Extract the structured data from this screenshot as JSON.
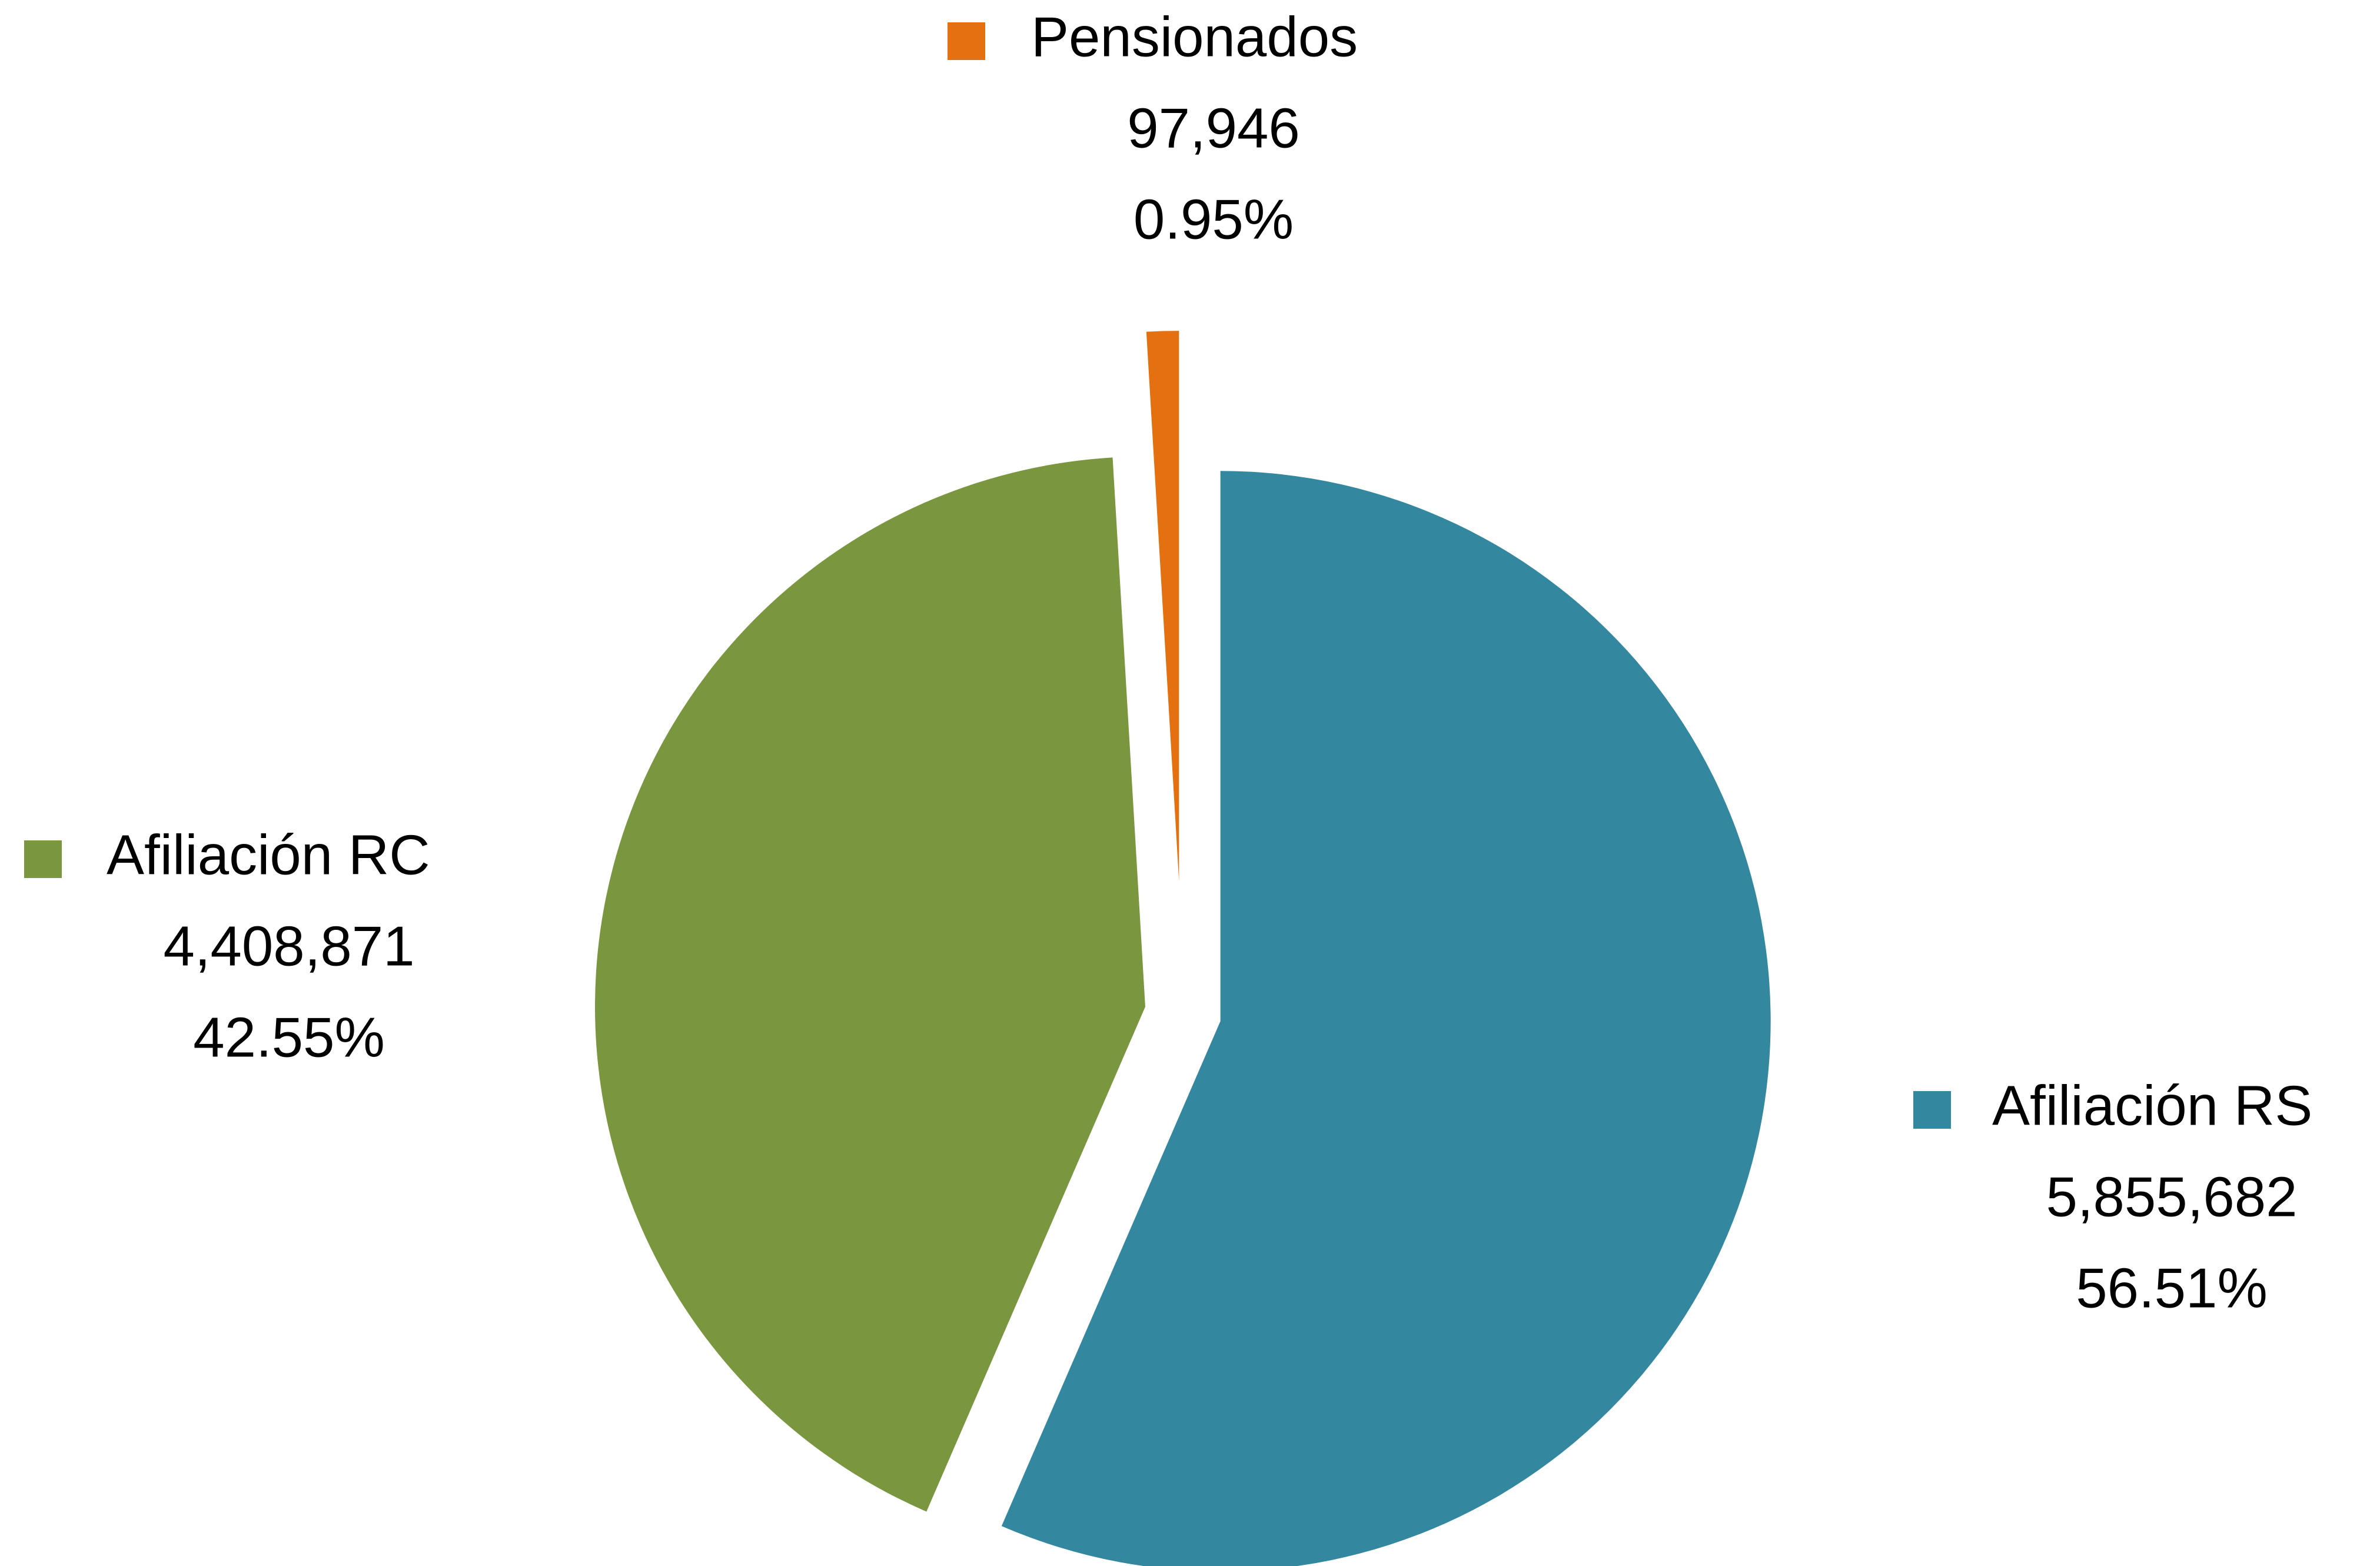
{
  "chart_data": {
    "type": "pie",
    "categories": [
      "Afiliación RS",
      "Afiliación RC",
      "Pensionados"
    ],
    "values": [
      5855682,
      4408871,
      97946
    ],
    "value_labels": [
      "5,855,682",
      "4,408,871",
      "97,946"
    ],
    "percent_labels": [
      "56.51%",
      "42.55%",
      "0.95%"
    ],
    "colors": [
      "#33879e",
      "#7a963e",
      "#e4700f"
    ]
  }
}
